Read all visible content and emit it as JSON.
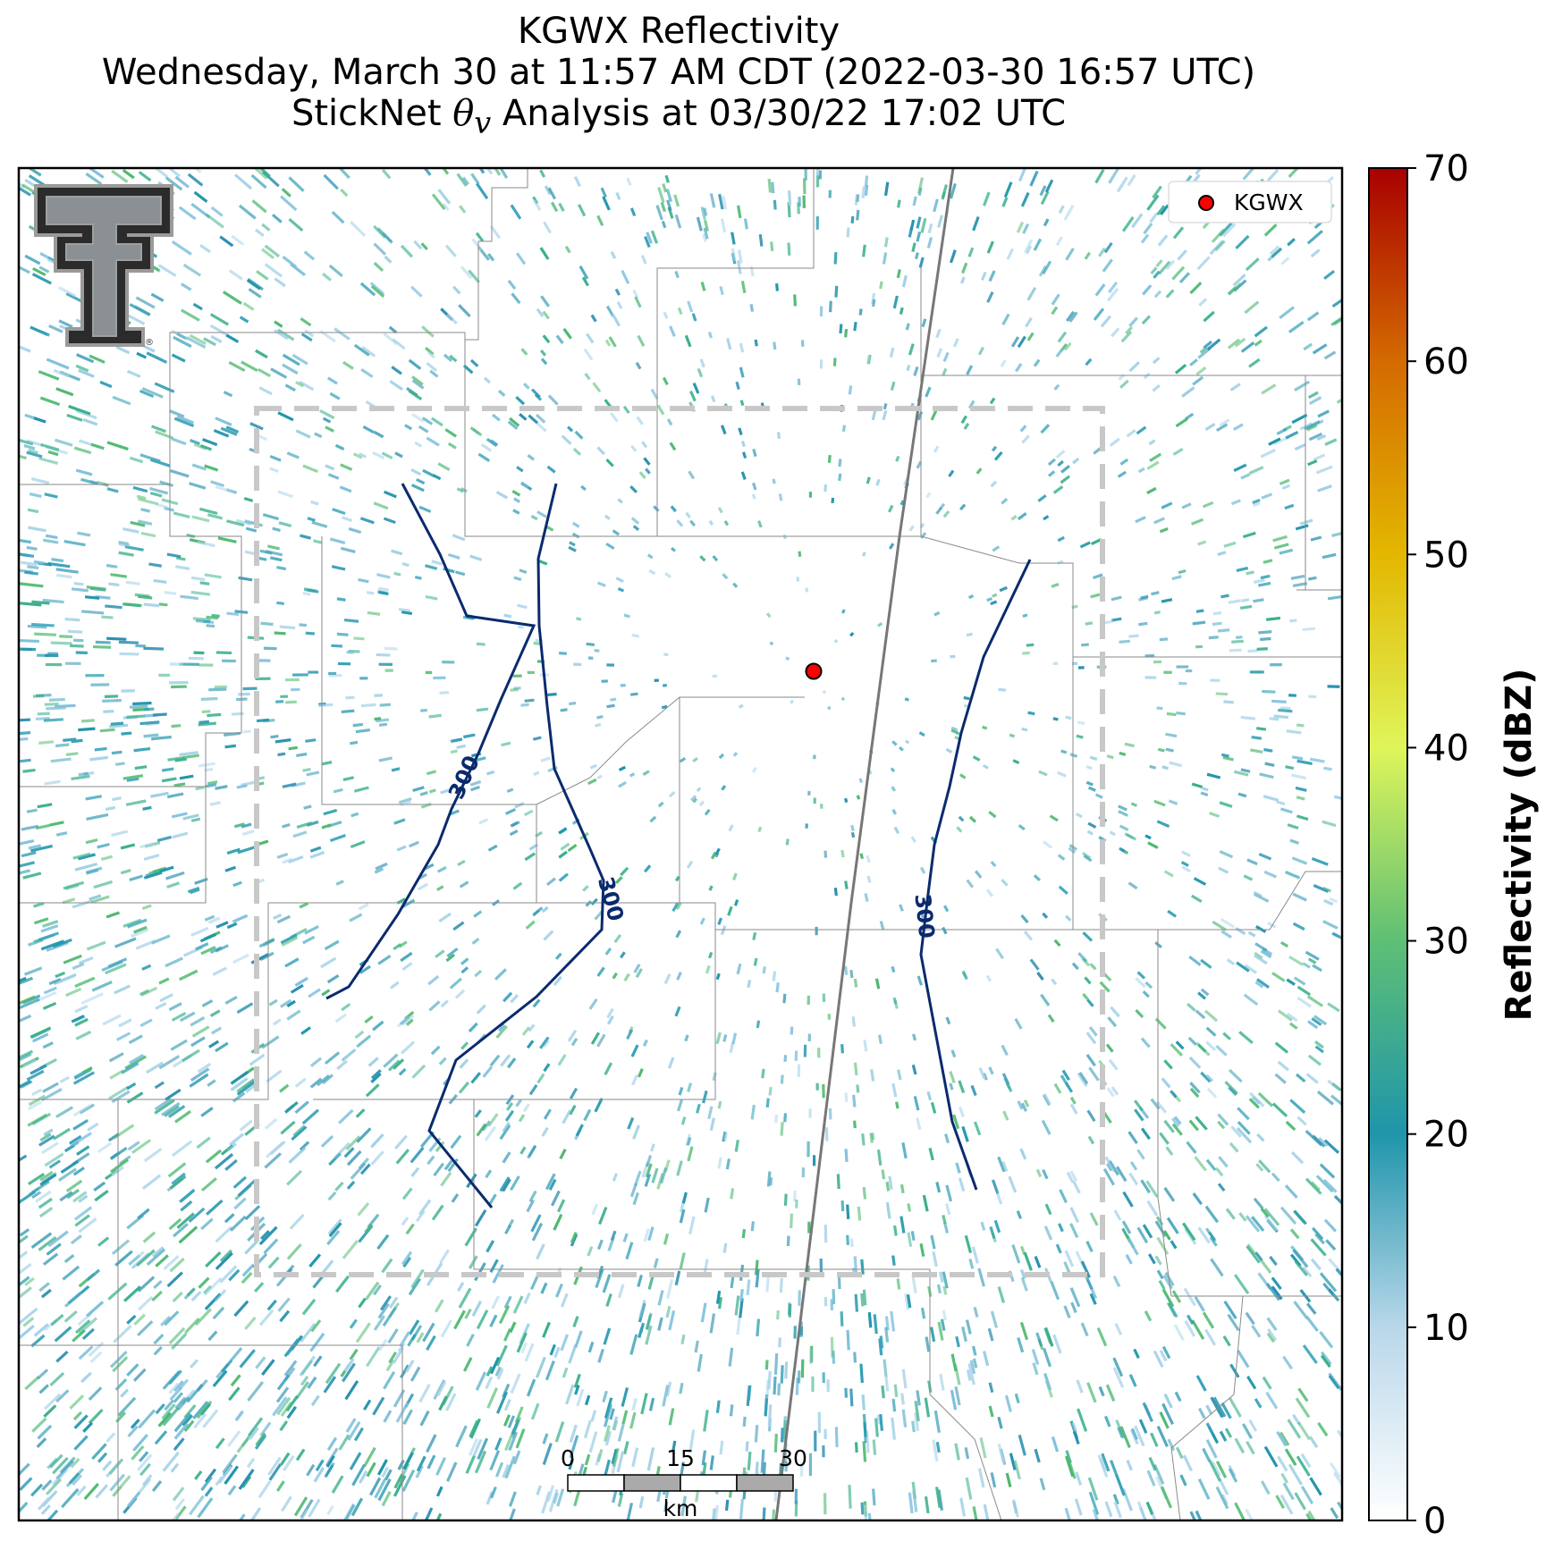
{
  "title": {
    "line1": "KGWX Reflectivity",
    "line2": "Wednesday, March 30 at 11:57 AM CDT (2022-03-30 16:57 UTC)",
    "line3_prefix": "StickNet ",
    "line3_symbol": "θ",
    "line3_subscript": "v",
    "line3_suffix": " Analysis at 03/30/22 17:02 UTC"
  },
  "legend": {
    "label": "KGWX",
    "marker_color": "#ff0000"
  },
  "radar_site": {
    "name": "KGWX"
  },
  "contours": {
    "level_label": "300",
    "color": "#0b2a6e"
  },
  "analysis_box": {
    "style": "dashed",
    "color": "#c8c8c8"
  },
  "scale_bar": {
    "ticks": [
      "0",
      "15",
      "30"
    ],
    "unit": "km"
  },
  "colorbar": {
    "label": "Reflectivity (dBZ)",
    "ticks": [
      "0",
      "10",
      "20",
      "30",
      "40",
      "50",
      "60",
      "70"
    ],
    "min": 0,
    "max": 70,
    "colors": [
      "#ffffff",
      "#b9d7ea",
      "#1f95ab",
      "#5ebf75",
      "#dff55a",
      "#e3b700",
      "#d46a00",
      "#a80000"
    ]
  },
  "logo": {
    "name": "texas-tech-double-t-logo"
  },
  "reflectivity_colors": [
    "#1f95ab",
    "#3aa1ba",
    "#2a8fb0",
    "#7fc0dc",
    "#a9d3ea",
    "#3ab08a",
    "#4cb86e"
  ]
}
